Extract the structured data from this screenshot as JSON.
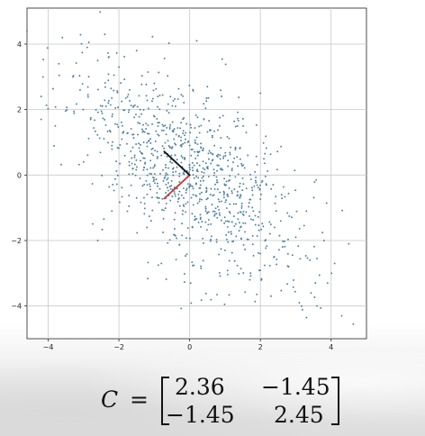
{
  "chart_data": {
    "type": "scatter",
    "title": "",
    "xlabel": "",
    "ylabel": "",
    "xlim": [
      -4.6,
      5.0
    ],
    "ylim": [
      -5.0,
      5.1
    ],
    "grid": true,
    "x_ticks": [
      -4,
      -2,
      0,
      2,
      4
    ],
    "y_ticks": [
      -4,
      -2,
      0,
      2,
      4
    ],
    "x_tick_labels": [
      "−4",
      "−2",
      "0",
      "2",
      "4"
    ],
    "y_tick_labels": [
      "−4",
      "−2",
      "0",
      "2",
      "4"
    ],
    "point_color": "#4a7fa0",
    "point_count": 1000,
    "points": [
      [
        -4.6,
        4.4
      ],
      [
        -4.2,
        2.4
      ],
      [
        -4.2,
        1.7
      ],
      [
        -3.7,
        3.4
      ],
      [
        -3.8,
        1.5
      ],
      [
        -3.6,
        4.2
      ],
      [
        -3.3,
        3.0
      ],
      [
        -3.1,
        2.6
      ],
      [
        -2.9,
        3.9
      ],
      [
        -2.8,
        1.7
      ],
      [
        -2.6,
        3.5
      ],
      [
        -2.4,
        4.3
      ],
      [
        -2.3,
        2.2
      ],
      [
        -2.2,
        0.9
      ],
      [
        -2.0,
        3.3
      ],
      [
        -1.9,
        1.5
      ],
      [
        -1.7,
        2.6
      ],
      [
        -1.6,
        0.2
      ],
      [
        -1.5,
        3.8
      ],
      [
        -1.4,
        2.0
      ],
      [
        -1.3,
        1.0
      ],
      [
        -1.2,
        -0.3
      ],
      [
        -1.0,
        2.8
      ],
      [
        -0.9,
        1.6
      ],
      [
        -0.8,
        0.6
      ],
      [
        -0.6,
        -0.6
      ],
      [
        -0.4,
        2.1
      ],
      [
        -0.3,
        1.2
      ],
      [
        -0.2,
        -1.2
      ],
      [
        0.0,
        0.3
      ],
      [
        0.2,
        4.1
      ],
      [
        0.3,
        -0.4
      ],
      [
        0.4,
        1.7
      ],
      [
        0.6,
        -1.5
      ],
      [
        0.7,
        0.9
      ],
      [
        0.9,
        -0.8
      ],
      [
        1.0,
        -2.3
      ],
      [
        1.2,
        0.2
      ],
      [
        1.4,
        -1.7
      ],
      [
        1.5,
        -0.1
      ],
      [
        1.7,
        -3.2
      ],
      [
        1.8,
        -1.1
      ],
      [
        2.0,
        -2.4
      ],
      [
        2.1,
        0.5
      ],
      [
        2.3,
        -3.7
      ],
      [
        2.4,
        -1.6
      ],
      [
        2.6,
        -0.6
      ],
      [
        2.8,
        -2.8
      ],
      [
        3.0,
        -1.9
      ],
      [
        3.1,
        -3.9
      ],
      [
        3.3,
        -1.1
      ],
      [
        3.4,
        -2.6
      ],
      [
        3.6,
        -4.0
      ],
      [
        3.8,
        -2.0
      ],
      [
        3.9,
        -3.3
      ],
      [
        4.1,
        -2.7
      ],
      [
        4.3,
        -4.3
      ],
      [
        4.5,
        -2.1
      ],
      [
        -2.6,
        -2.0
      ],
      [
        -3.0,
        0.4
      ],
      [
        -0.8,
        -2.7
      ],
      [
        0.5,
        2.7
      ],
      [
        2.0,
        2.5
      ],
      [
        -1.5,
        -0.7
      ],
      [
        1.6,
        1.3
      ],
      [
        -2.2,
        -1.1
      ]
    ],
    "principal_axes": [
      {
        "from": [
          0,
          0
        ],
        "to": [
          -0.72,
          -0.72
        ],
        "color": "#c0392b"
      },
      {
        "from": [
          0,
          0
        ],
        "to": [
          -0.72,
          0.72
        ],
        "color": "#111111"
      }
    ]
  },
  "covariance_formula": {
    "symbol": "C",
    "equals": "=",
    "matrix": [
      [
        "2.36",
        "−1.45"
      ],
      [
        "−1.45",
        "2.45"
      ]
    ]
  }
}
